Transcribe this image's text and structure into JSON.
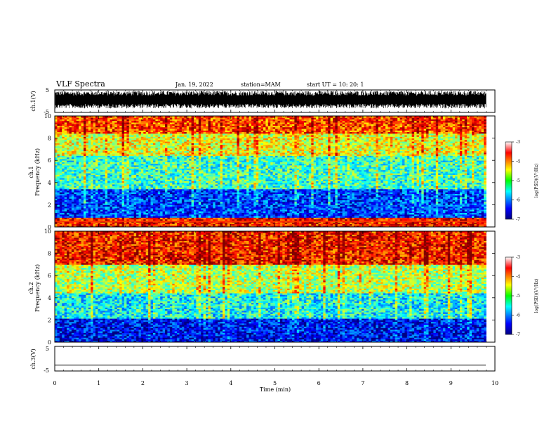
{
  "header": {
    "title": "VLF Spectra",
    "date": "Jan. 19, 2022",
    "station": "station=MAM",
    "start": "start  UT =   10: 20: 1"
  },
  "chart_data": [
    {
      "type": "line",
      "panel": "ch1-waveform",
      "ylabel": "ch.1(V)",
      "ylim": [
        -5,
        5
      ],
      "yticks": [
        "5",
        "-5"
      ],
      "xlim": [
        0,
        10
      ],
      "description_values": {
        "amplitude_range_V": [
          -3.2,
          4.6
        ]
      }
    },
    {
      "type": "heatmap",
      "panel": "ch1-spectrogram",
      "ylabel": "ch.1\nFrequency (kHz)",
      "ylim": [
        0,
        10
      ],
      "yticks": [
        "0",
        "2",
        "4",
        "6",
        "8",
        "10"
      ],
      "xlim": [
        0,
        9.8
      ],
      "colorbar": {
        "label": "log(PSD)(V²/Hz)",
        "range": [
          -7,
          -3
        ],
        "ticks": [
          "-3",
          "-4",
          "-5",
          "-6",
          "-7"
        ]
      },
      "bands": [
        {
          "freq_kHz": [
            0,
            0.8
          ],
          "level": -3.6
        },
        {
          "freq_kHz": [
            0.8,
            3.5
          ],
          "level": -6.3
        },
        {
          "freq_kHz": [
            3.5,
            6.5
          ],
          "level": -5.3
        },
        {
          "freq_kHz": [
            6.5,
            8.5
          ],
          "level": -4.6
        },
        {
          "freq_kHz": [
            8.5,
            10
          ],
          "level": -3.8
        }
      ]
    },
    {
      "type": "heatmap",
      "panel": "ch2-spectrogram",
      "ylabel": "ch.2\nFrequency (kHz)",
      "ylim": [
        0,
        10
      ],
      "yticks": [
        "0",
        "2",
        "4",
        "6",
        "8",
        "10"
      ],
      "xlim": [
        0,
        9.8
      ],
      "colorbar": {
        "label": "log(PSD)(V²/Hz)",
        "range": [
          -7,
          -3
        ],
        "ticks": [
          "-3",
          "-4",
          "-5",
          "-6",
          "-7"
        ]
      },
      "bands": [
        {
          "freq_kHz": [
            0,
            2.2
          ],
          "level": -6.5
        },
        {
          "freq_kHz": [
            2.2,
            4.5
          ],
          "level": -5.5
        },
        {
          "freq_kHz": [
            4.5,
            7.0
          ],
          "level": -4.8
        },
        {
          "freq_kHz": [
            7.0,
            10
          ],
          "level": -3.6
        }
      ]
    },
    {
      "type": "line",
      "panel": "ch3-waveform",
      "ylabel": "ch.3(V)",
      "ylim": [
        -5,
        5
      ],
      "yticks": [
        "5",
        "-5"
      ],
      "xlim": [
        0,
        10
      ],
      "values_constant_V": -2.6
    }
  ],
  "xaxis": {
    "label": "Time (min)",
    "ticks": [
      "0",
      "1",
      "2",
      "3",
      "4",
      "5",
      "6",
      "7",
      "8",
      "9",
      "10"
    ]
  },
  "colors": {
    "jet": [
      "#00008f",
      "#0000ff",
      "#00ffff",
      "#00ff00",
      "#ffff00",
      "#ff7f00",
      "#ff0000",
      "#7f0000"
    ]
  }
}
